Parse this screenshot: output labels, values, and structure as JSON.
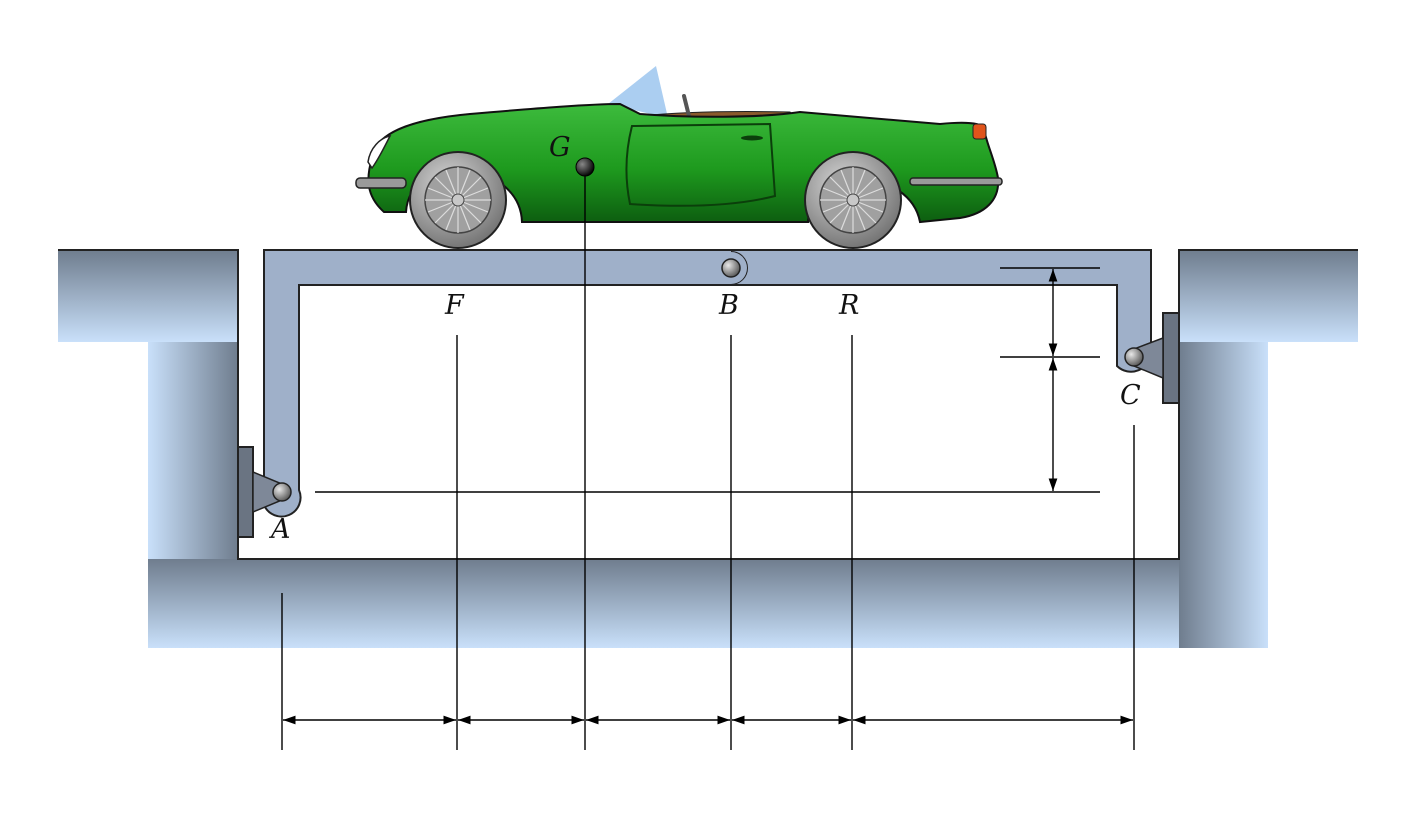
{
  "labels": {
    "G": "G",
    "F": "F",
    "B": "B",
    "R": "R",
    "C": "C",
    "A": "A"
  },
  "colors": {
    "car_body": "#1e9a1e",
    "car_body_dark": "#0d5e10",
    "lift_frame": "#9fb0c9",
    "pit_light": "#c5dcf6",
    "pit_dark": "#6f7d8e",
    "bracket": "#6a7482",
    "pin": "#777777"
  },
  "icons": [
    "car",
    "pivot-pin",
    "wall-bracket",
    "dimension-arrow"
  ]
}
